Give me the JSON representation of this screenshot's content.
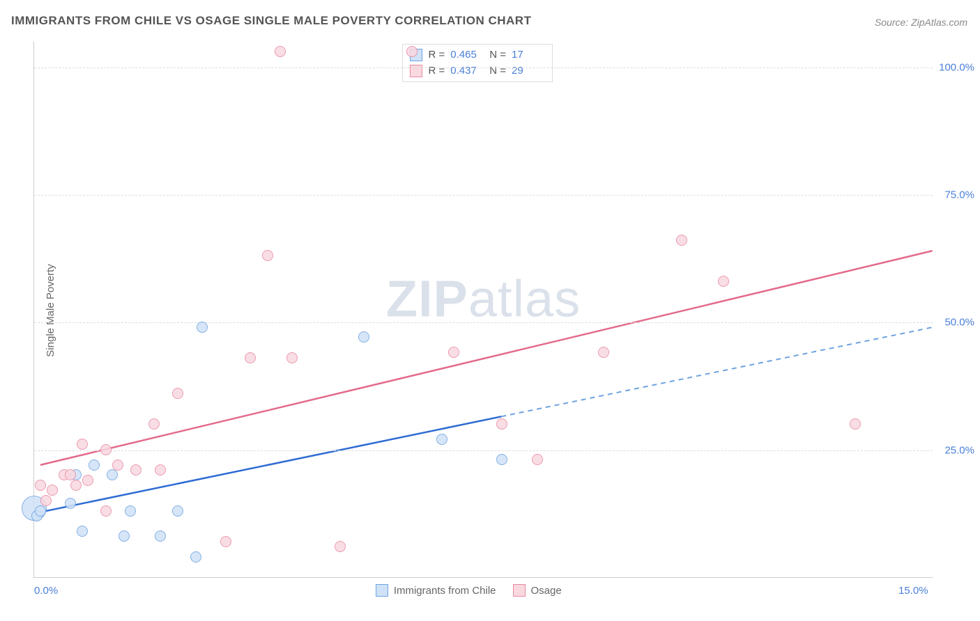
{
  "title": "IMMIGRANTS FROM CHILE VS OSAGE SINGLE MALE POVERTY CORRELATION CHART",
  "source": "Source: ZipAtlas.com",
  "ylabel": "Single Male Poverty",
  "watermark_bold": "ZIP",
  "watermark_rest": "atlas",
  "chart": {
    "type": "scatter",
    "xlim": [
      0,
      15
    ],
    "ylim": [
      0,
      105
    ],
    "xticks": [
      {
        "v": 0,
        "label": "0.0%"
      },
      {
        "v": 15,
        "label": "15.0%"
      }
    ],
    "yticks": [
      {
        "v": 25,
        "label": "25.0%"
      },
      {
        "v": 50,
        "label": "50.0%"
      },
      {
        "v": 75,
        "label": "75.0%"
      },
      {
        "v": 100,
        "label": "100.0%"
      }
    ],
    "grid_color": "#dddddd",
    "background_color": "#ffffff",
    "axis_color": "#cccccc",
    "tick_label_color": "#4a7fd8",
    "series": [
      {
        "name": "Immigrants from Chile",
        "fill": "#cfe2f7",
        "stroke": "#6ea3e0",
        "trend_color": "#2e6bd4",
        "trend_dash_color": "#6ea3e0",
        "R": "0.465",
        "N": "17",
        "points": [
          {
            "x": 0.0,
            "y": 13.5,
            "r": 18
          },
          {
            "x": 0.05,
            "y": 12.0,
            "r": 8
          },
          {
            "x": 0.1,
            "y": 13.0,
            "r": 8
          },
          {
            "x": 0.6,
            "y": 14.5,
            "r": 8
          },
          {
            "x": 0.7,
            "y": 20.0,
            "r": 8
          },
          {
            "x": 0.8,
            "y": 9.0,
            "r": 8
          },
          {
            "x": 1.0,
            "y": 22.0,
            "r": 8
          },
          {
            "x": 1.3,
            "y": 20.0,
            "r": 8
          },
          {
            "x": 1.5,
            "y": 8.0,
            "r": 8
          },
          {
            "x": 1.6,
            "y": 13.0,
            "r": 8
          },
          {
            "x": 2.1,
            "y": 8.0,
            "r": 8
          },
          {
            "x": 2.4,
            "y": 13.0,
            "r": 8
          },
          {
            "x": 2.7,
            "y": 4.0,
            "r": 8
          },
          {
            "x": 2.8,
            "y": 49.0,
            "r": 8
          },
          {
            "x": 5.5,
            "y": 47.0,
            "r": 8
          },
          {
            "x": 6.8,
            "y": 27.0,
            "r": 8
          },
          {
            "x": 7.8,
            "y": 23.0,
            "r": 8
          }
        ],
        "trend": {
          "x1": 0.0,
          "y1": 12.5,
          "x2_solid": 7.8,
          "y2_solid": 31.5,
          "x2_dash": 15.0,
          "y2_dash": 49.0
        }
      },
      {
        "name": "Osage",
        "fill": "#f9d8e0",
        "stroke": "#e88aa2",
        "trend_color": "#e46a8b",
        "R": "0.437",
        "N": "29",
        "points": [
          {
            "x": 0.1,
            "y": 18.0,
            "r": 8
          },
          {
            "x": 0.2,
            "y": 15.0,
            "r": 8
          },
          {
            "x": 0.3,
            "y": 17.0,
            "r": 8
          },
          {
            "x": 0.5,
            "y": 20.0,
            "r": 8
          },
          {
            "x": 0.6,
            "y": 20.0,
            "r": 8
          },
          {
            "x": 0.7,
            "y": 18.0,
            "r": 8
          },
          {
            "x": 0.8,
            "y": 26.0,
            "r": 8
          },
          {
            "x": 0.9,
            "y": 19.0,
            "r": 8
          },
          {
            "x": 1.2,
            "y": 25.0,
            "r": 8
          },
          {
            "x": 1.2,
            "y": 13.0,
            "r": 8
          },
          {
            "x": 1.4,
            "y": 22.0,
            "r": 8
          },
          {
            "x": 1.7,
            "y": 21.0,
            "r": 8
          },
          {
            "x": 2.0,
            "y": 30.0,
            "r": 8
          },
          {
            "x": 2.1,
            "y": 21.0,
            "r": 8
          },
          {
            "x": 2.4,
            "y": 36.0,
            "r": 8
          },
          {
            "x": 3.2,
            "y": 7.0,
            "r": 8
          },
          {
            "x": 3.6,
            "y": 43.0,
            "r": 8
          },
          {
            "x": 3.9,
            "y": 63.0,
            "r": 8
          },
          {
            "x": 4.1,
            "y": 103.0,
            "r": 8
          },
          {
            "x": 4.3,
            "y": 43.0,
            "r": 8
          },
          {
            "x": 5.1,
            "y": 6.0,
            "r": 8
          },
          {
            "x": 6.3,
            "y": 103.0,
            "r": 8
          },
          {
            "x": 7.0,
            "y": 44.0,
            "r": 8
          },
          {
            "x": 7.8,
            "y": 30.0,
            "r": 8
          },
          {
            "x": 8.4,
            "y": 23.0,
            "r": 8
          },
          {
            "x": 9.5,
            "y": 44.0,
            "r": 8
          },
          {
            "x": 10.8,
            "y": 66.0,
            "r": 8
          },
          {
            "x": 11.5,
            "y": 58.0,
            "r": 8
          },
          {
            "x": 13.7,
            "y": 30.0,
            "r": 8
          }
        ],
        "trend": {
          "x1": 0.1,
          "y1": 22.0,
          "x2_solid": 15.0,
          "y2_solid": 64.0
        }
      }
    ]
  },
  "legend_top_rows": [
    {
      "series_idx": 0,
      "R_label": "R =",
      "N_label": "N ="
    },
    {
      "series_idx": 1,
      "R_label": "R =",
      "N_label": "N ="
    }
  ],
  "legend_bottom": [
    {
      "series_idx": 0
    },
    {
      "series_idx": 1
    }
  ]
}
